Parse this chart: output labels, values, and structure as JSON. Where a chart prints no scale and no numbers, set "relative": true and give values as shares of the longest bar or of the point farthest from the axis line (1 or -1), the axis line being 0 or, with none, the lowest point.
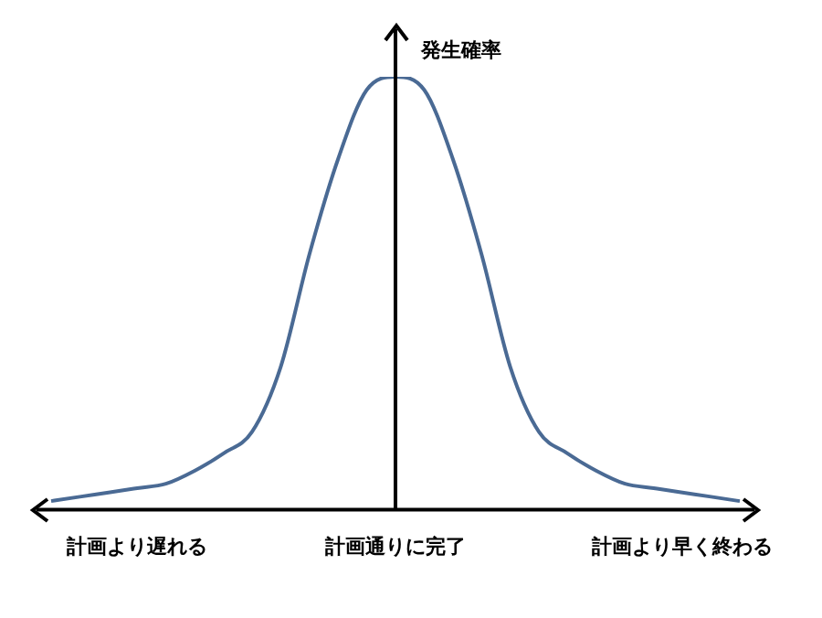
{
  "chart_data": {
    "type": "line",
    "relative": true,
    "ylabel": "発生確率",
    "categories": [
      null,
      null,
      null,
      "計画より遅れる",
      null,
      null,
      null,
      null,
      null,
      null,
      null,
      null,
      "計画通りに完了",
      null,
      null,
      null,
      null,
      null,
      null,
      null,
      null,
      null,
      "計画より早く終わる",
      null,
      null
    ],
    "series": [
      {
        "color": "#4a6a94",
        "values": [
          0.02,
          0.03,
          0.04,
          0.05,
          0.06,
          0.09,
          0.13,
          0.18,
          0.33,
          0.59,
          0.81,
          0.97,
          1,
          0.97,
          0.81,
          0.59,
          0.33,
          0.18,
          0.13,
          0.09,
          0.06,
          0.05,
          0.04,
          0.03,
          0.02
        ]
      }
    ],
    "ref_lines": [
      {
        "axis": "x",
        "value": "計画通りに完了",
        "color": "#000000"
      }
    ],
    "grid": false,
    "legend": false,
    "marker": "none",
    "line_style": "solid"
  }
}
